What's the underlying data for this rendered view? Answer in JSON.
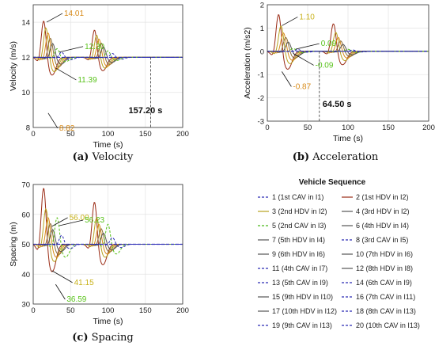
{
  "chart_data": [
    {
      "type": "line",
      "caption_letter": "(a)",
      "caption_text": "Velocity",
      "xlabel": "Time (s)",
      "ylabel": "Velocity (m/s)",
      "xlim": [
        0,
        200
      ],
      "ylim": [
        8,
        15
      ],
      "xticks": [
        0,
        50,
        100,
        150,
        200
      ],
      "yticks": [
        8,
        10,
        12,
        14
      ],
      "grid": true,
      "equilibrium": 12,
      "annotations": [
        {
          "text": "14.01",
          "x": 18,
          "y": 14.01,
          "color": "#d88b1a"
        },
        {
          "text": "12.30",
          "x": 35,
          "y": 12.3,
          "color": "#58c21a"
        },
        {
          "text": "11.39",
          "x": 30,
          "y": 11.39,
          "color": "#58c21a"
        },
        {
          "text": "8.82",
          "x": 20,
          "y": 8.82,
          "color": "#d88b1a"
        }
      ],
      "settling": {
        "text": "157.20 s",
        "x": 157.2
      }
    },
    {
      "type": "line",
      "caption_letter": "(b)",
      "caption_text": "Acceleration",
      "xlabel": "Time (s)",
      "ylabel": "Acceleration (m/s2)",
      "xlim": [
        0,
        200
      ],
      "ylim": [
        -3,
        2
      ],
      "xticks": [
        0,
        50,
        100,
        150,
        200
      ],
      "yticks": [
        -3,
        -2,
        -1,
        0,
        1,
        2
      ],
      "grid": true,
      "equilibrium": 0,
      "annotations": [
        {
          "text": "1.10",
          "x": 18,
          "y": 1.1,
          "color": "#c9b21a"
        },
        {
          "text": "0.09",
          "x": 35,
          "y": 0.09,
          "color": "#58c21a"
        },
        {
          "text": "-0.09",
          "x": 32,
          "y": -0.09,
          "color": "#58c21a"
        },
        {
          "text": "-0.87",
          "x": 18,
          "y": -0.87,
          "color": "#d88b1a"
        }
      ],
      "settling": {
        "text": "64.50 s",
        "x": 64.5
      }
    },
    {
      "type": "line",
      "caption_letter": "(c)",
      "caption_text": "Spacing",
      "xlabel": "Time (s)",
      "ylabel": "Spacing (m)",
      "xlim": [
        0,
        200
      ],
      "ylim": [
        30,
        70
      ],
      "xticks": [
        0,
        50,
        100,
        150,
        200
      ],
      "yticks": [
        30,
        40,
        50,
        60,
        70
      ],
      "grid": true,
      "equilibrium": 50,
      "annotations": [
        {
          "text": "56.00",
          "x": 25,
          "y": 56.0,
          "color": "#c9b21a"
        },
        {
          "text": "56.23",
          "x": 35,
          "y": 56.23,
          "color": "#58c21a"
        },
        {
          "text": "41.15",
          "x": 25,
          "y": 41.15,
          "color": "#c9b21a"
        },
        {
          "text": "36.59",
          "x": 30,
          "y": 36.59,
          "color": "#58c21a"
        }
      ]
    }
  ],
  "legend": {
    "title": "Vehicle Sequence",
    "entries": [
      {
        "label": "1 (1st CAV in I1)",
        "color": "#2a2ab5",
        "style": "dashed"
      },
      {
        "label": "2 (1st HDV in I2)",
        "color": "#9a2a14",
        "style": "solid"
      },
      {
        "label": "3 (2nd HDV in I2)",
        "color": "#b7a21e",
        "style": "solid"
      },
      {
        "label": "4 (3rd HDV in I2)",
        "color": "#555555",
        "style": "solid"
      },
      {
        "label": "5 (2nd CAV in I3)",
        "color": "#49b817",
        "style": "dashed"
      },
      {
        "label": "6 (4th HDV in I4)",
        "color": "#555555",
        "style": "solid"
      },
      {
        "label": "7 (5th HDV in I4)",
        "color": "#555555",
        "style": "solid"
      },
      {
        "label": "8 (3rd CAV in I5)",
        "color": "#2a2ab5",
        "style": "dashed"
      },
      {
        "label": "9 (6th HDV in I6)",
        "color": "#555555",
        "style": "solid"
      },
      {
        "label": "10 (7th HDV in I6)",
        "color": "#555555",
        "style": "solid"
      },
      {
        "label": "11 (4th CAV in I7)",
        "color": "#2a2ab5",
        "style": "dashed"
      },
      {
        "label": "12 (8th HDV in I8)",
        "color": "#555555",
        "style": "solid"
      },
      {
        "label": "13 (5th CAV in I9)",
        "color": "#2a2ab5",
        "style": "dashed"
      },
      {
        "label": "14 (6th CAV in I9)",
        "color": "#2a2ab5",
        "style": "dashed"
      },
      {
        "label": "15 (9th HDV in I10)",
        "color": "#555555",
        "style": "solid"
      },
      {
        "label": "16 (7th CAV in I11)",
        "color": "#2a2ab5",
        "style": "dashed"
      },
      {
        "label": "17 (10th HDV in I12)",
        "color": "#555555",
        "style": "solid"
      },
      {
        "label": "18 (8th CAV in I13)",
        "color": "#2a2ab5",
        "style": "dashed"
      },
      {
        "label": "19 (9th CAV in I13)",
        "color": "#2a2ab5",
        "style": "dashed"
      },
      {
        "label": "20 (10th CAV in I13)",
        "color": "#2a2ab5",
        "style": "dashed"
      }
    ]
  }
}
